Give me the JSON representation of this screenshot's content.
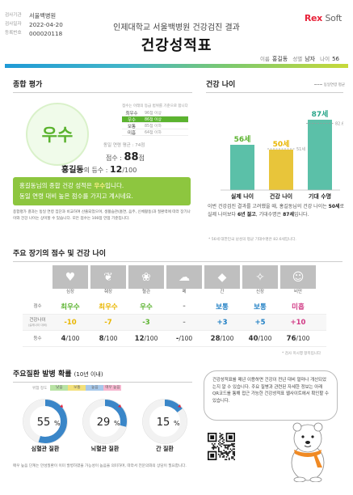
{
  "header": {
    "info": [
      {
        "label": "검사기관",
        "value": "서울백병원"
      },
      {
        "label": "검사일자",
        "value": "2022-04-20"
      },
      {
        "label": "등록번호",
        "value": "000020118"
      }
    ],
    "logo_main": "Rex",
    "logo_sub": "Soft",
    "subtitle": "인제대학교 서울백병원 건강검진 결과",
    "title": "건강성적표",
    "person": {
      "name_label": "이름",
      "name": "홍길동",
      "sex_label": "성별",
      "sex": "남자",
      "age_label": "나이",
      "age": "56"
    }
  },
  "evaluation": {
    "heading": "종합 평가",
    "grade": "우수",
    "grade_table_caption": "점수는 아래의 등급 범위를 기준으로 합니다",
    "grade_table": [
      {
        "grade": "최우수",
        "range": "96점 이상",
        "active": false
      },
      {
        "grade": "우수",
        "range": "86점 이상",
        "active": true
      },
      {
        "grade": "보통",
        "range": "85점 이하",
        "active": false
      },
      {
        "grade": "미흡",
        "range": "64점 이하",
        "active": false
      }
    ],
    "avg_text": "동일 연령 평균 : 74점",
    "score_label": "점수 :",
    "score": "88",
    "score_unit": "점",
    "name": "홍길동",
    "rank_label": "의 등수 :",
    "rank": "12",
    "rank_total": "/100",
    "banner_line1_a": "홍길동님의 종합 건강 성적은 ",
    "banner_line1_hl": "우수",
    "banner_line1_b": "입니다.",
    "banner_line2": "동일 연령 대비 높은 점수를 가지고 계시네요.",
    "note": "종합평가 결과는 동일 연령 집단과 비교하여 산출되었으며, 생활습관(흡연, 음주, 신체활동)과 질환력에 따라 장기나이와 건강 나이는 상이할 수 있습니다. 모든 점수는 100점 만점 기준입니다."
  },
  "health_age": {
    "heading": "건강 나이",
    "legend": "동일연령 평균",
    "avg_label": "51세",
    "desc_a": "이번 건강검진 결과를 고려했을 때, 홍길동님의 건강 나이는 ",
    "desc_b": "50세",
    "desc_c": "로 실제 나이보다 ",
    "desc_d": "6년 젊고",
    "desc_e": ", 기대수명은 ",
    "desc_f": "87세",
    "desc_g": "입니다.",
    "foot": "* 56세 대한민국 남성의 평균 기대수명은 82.6세입니다."
  },
  "chart_data": {
    "type": "bar",
    "categories": [
      "실제 나이",
      "건강 나이",
      "기대 수명"
    ],
    "value_labels": [
      "56세",
      "50세",
      "87세"
    ],
    "values": [
      56,
      50,
      87
    ],
    "average_values": [
      null,
      51,
      82.6
    ],
    "average_labels": [
      "",
      "51세",
      "82.6세"
    ],
    "colors": [
      "#5bc0a8",
      "#e8c53a",
      "#5bc0a8"
    ],
    "label_colors": [
      "#5bb32f",
      "#e9b600",
      "#2aa68a"
    ]
  },
  "organs": {
    "heading": "주요 장기의 점수 및 건강 나이",
    "names": [
      "심장",
      "췌장",
      "혈관",
      "폐",
      "간",
      "신장",
      "비만"
    ],
    "row_grade": "점수",
    "row_age": "건강나이",
    "row_age_sub": "(실제나이 대비)",
    "row_rank": "등수",
    "grades": [
      {
        "text": "최우수",
        "color": "green"
      },
      {
        "text": "최우수",
        "color": "yellow"
      },
      {
        "text": "우수",
        "color": "green"
      },
      {
        "text": "-",
        "color": "gray"
      },
      {
        "text": "보통",
        "color": "blue"
      },
      {
        "text": "보통",
        "color": "blue"
      },
      {
        "text": "미흡",
        "color": "pink"
      }
    ],
    "ages": [
      {
        "text": "-10",
        "color": "yellow"
      },
      {
        "text": "-7",
        "color": "yellow"
      },
      {
        "text": "-3",
        "color": "green"
      },
      {
        "text": "-",
        "color": "gray"
      },
      {
        "text": "+3",
        "color": "blue"
      },
      {
        "text": "+5",
        "color": "blue"
      },
      {
        "text": "+10",
        "color": "pink"
      }
    ],
    "ranks": [
      {
        "num": "4",
        "total": "/100"
      },
      {
        "num": "8",
        "total": "/100"
      },
      {
        "num": "12",
        "total": "/100"
      },
      {
        "num": "-",
        "total": "/100"
      },
      {
        "num": "28",
        "total": "/100"
      },
      {
        "num": "40",
        "total": "/100"
      },
      {
        "num": "76",
        "total": "/100"
      }
    ],
    "note": "* 검사 미시행 항목입니다"
  },
  "risk": {
    "heading": "주요질환 발병 확률",
    "heading_sub": "(10년 이내)",
    "legend_label": "위험 정도",
    "legend": [
      "낮음",
      "보통",
      "높음",
      "매우 높음"
    ],
    "legend_colors": [
      "#b9e3a4",
      "#f3e07a",
      "#a7c8ea",
      "#f6b6cf"
    ],
    "items": [
      {
        "name": "심혈관 질환",
        "value": "55",
        "unit": "%",
        "fraction": 0.55,
        "color": "#3a86c8"
      },
      {
        "name": "뇌혈관 질환",
        "value": "29",
        "unit": "%",
        "fraction": 0.29,
        "color": "#3a86c8"
      },
      {
        "name": "간 질환",
        "value": "15",
        "unit": "%",
        "fraction": 0.15,
        "color": "#3a86c8"
      }
    ],
    "note": "매우 높음 단계는 만성질환이 이미 발병하였을 가능성이 높음을 의미하며, 따라서 전문의와의 상담이 필요합니다."
  },
  "bubble": {
    "text": "건강성적표를 매년 이용하면 건강이 전년 대비 얼마나 개선되었는지 알 수 있습니다. 주요 질병과 관련된 자세한 정보는 아래 QR코드를 통해 접근 가능한 건강성적표 웹사이트에서 확인할 수 있습니다."
  }
}
